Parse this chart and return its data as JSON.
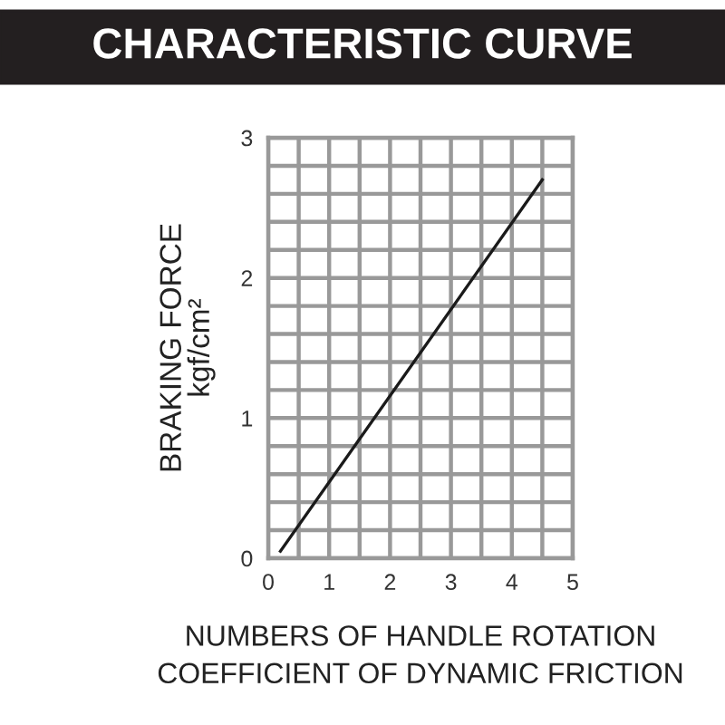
{
  "chart_data": {
    "type": "line",
    "title": "CHARACTERISTIC CURVE",
    "xlabel": "NUMBERS OF HANDLE ROTATION\nCOEFFICIENT OF DYNAMIC FRICTION",
    "ylabel": "BRAKING FORCE\nkgf/cm²",
    "x": [
      0.2,
      4.5
    ],
    "series": [
      {
        "color": "#1a1a1a",
        "values": [
          0.05,
          2.7
        ]
      }
    ],
    "xlim": [
      0,
      5
    ],
    "ylim": [
      0,
      3
    ],
    "xticks": [
      0,
      {
        "value": 0.5,
        "label": null
      },
      1,
      {
        "value": 1.5,
        "label": null
      },
      2,
      {
        "value": 2.5,
        "label": null
      },
      3,
      {
        "value": 3.5,
        "label": null
      },
      4,
      {
        "value": 4.5,
        "label": null
      },
      5
    ],
    "yticks": [
      0,
      {
        "value": 0.2,
        "label": null
      },
      {
        "value": 0.4,
        "label": null
      },
      {
        "value": 0.6,
        "label": null
      },
      {
        "value": 0.8,
        "label": null
      },
      1,
      {
        "value": 1.2,
        "label": null
      },
      {
        "value": 1.4,
        "label": null
      },
      {
        "value": 1.6,
        "label": null
      },
      {
        "value": 1.8,
        "label": null
      },
      2,
      {
        "value": 2.2,
        "label": null
      },
      {
        "value": 2.4,
        "label": null
      },
      {
        "value": 2.6,
        "label": null
      },
      {
        "value": 2.8,
        "label": null
      },
      3
    ],
    "grid": true,
    "marker": "none",
    "line_style": "solid",
    "legend": false
  }
}
